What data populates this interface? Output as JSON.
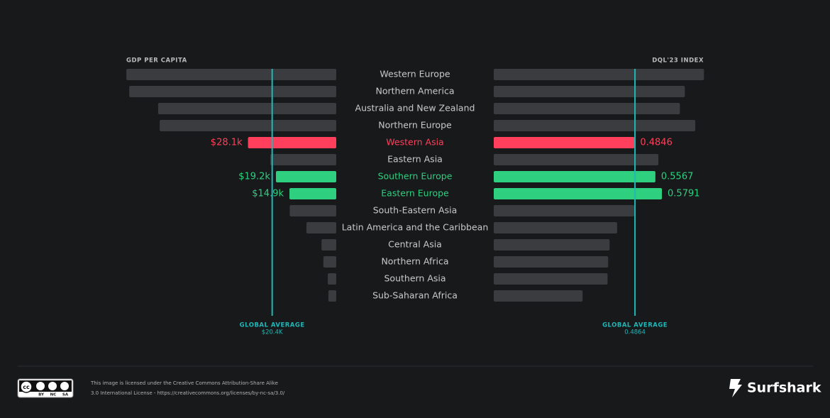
{
  "chart_data": {
    "type": "butterfly",
    "categories": [
      "Western Europe",
      "Northern America",
      "Australia and New Zealand",
      "Northern Europe",
      "Western Asia",
      "Eastern Asia",
      "Southern Europe",
      "Eastern Europe",
      "South-Eastern Asia",
      "Latin America and the Caribbean",
      "Central Asia",
      "Northern Africa",
      "Southern Asia",
      "Sub-Saharan Africa"
    ],
    "label_colors": [
      "#c8c9cb",
      "#c8c9cb",
      "#c8c9cb",
      "#c8c9cb",
      "#ff3f5b",
      "#c8c9cb",
      "#2fcf80",
      "#2fcf80",
      "#c8c9cb",
      "#c8c9cb",
      "#c8c9cb",
      "#c8c9cb",
      "#c8c9cb",
      "#c8c9cb"
    ],
    "series": [
      {
        "name": "GDP PER CAPITA",
        "side": "left",
        "xlim": [
          0,
          70
        ],
        "values": [
          66.8,
          65.9,
          56.7,
          56.2,
          28.1,
          21.0,
          19.2,
          14.9,
          14.8,
          9.5,
          4.7,
          4.1,
          2.7,
          2.5
        ],
        "value_labels": [
          null,
          null,
          null,
          null,
          "$28.1k",
          null,
          "$19.2k",
          "$14.9k",
          null,
          null,
          null,
          null,
          null,
          null
        ],
        "colors": [
          "#3a3c40",
          "#3a3c40",
          "#3a3c40",
          "#3a3c40",
          "#ff3f5b",
          "#3a3c40",
          "#2fcf80",
          "#2fcf80",
          "#3a3c40",
          "#3a3c40",
          "#3a3c40",
          "#3a3c40",
          "#3a3c40",
          "#3a3c40"
        ],
        "global_average": {
          "label": "GLOBAL AVERAGE",
          "value_label": "$20.4K",
          "value": 20.4,
          "color": "#1fb8b8"
        }
      },
      {
        "name": "DQL'23 INDEX",
        "side": "right",
        "xlim": [
          0,
          0.75
        ],
        "values": [
          0.724,
          0.658,
          0.641,
          0.694,
          0.4846,
          0.567,
          0.5567,
          0.5791,
          0.484,
          0.425,
          0.399,
          0.394,
          0.392,
          0.306
        ],
        "value_labels": [
          null,
          null,
          null,
          null,
          "0.4846",
          null,
          "0.5567",
          "0.5791",
          null,
          null,
          null,
          null,
          null,
          null
        ],
        "colors": [
          "#3a3c40",
          "#3a3c40",
          "#3a3c40",
          "#3a3c40",
          "#ff3f5b",
          "#3a3c40",
          "#2fcf80",
          "#2fcf80",
          "#3a3c40",
          "#3a3c40",
          "#3a3c40",
          "#3a3c40",
          "#3a3c40",
          "#3a3c40"
        ],
        "global_average": {
          "label": "GLOBAL AVERAGE",
          "value_label": "0.4864",
          "value": 0.4864,
          "color": "#1fb8b8"
        }
      }
    ]
  },
  "footer": {
    "cc_badge": [
      "BY",
      "NC",
      "SA"
    ],
    "license_lines": [
      "This image is licensed under the Creative Commons Attribution-Share Alike",
      "3.0 International License - https://creativecommons.org/licenses/by-nc-sa/3.0/"
    ],
    "brand": "Surfshark"
  }
}
